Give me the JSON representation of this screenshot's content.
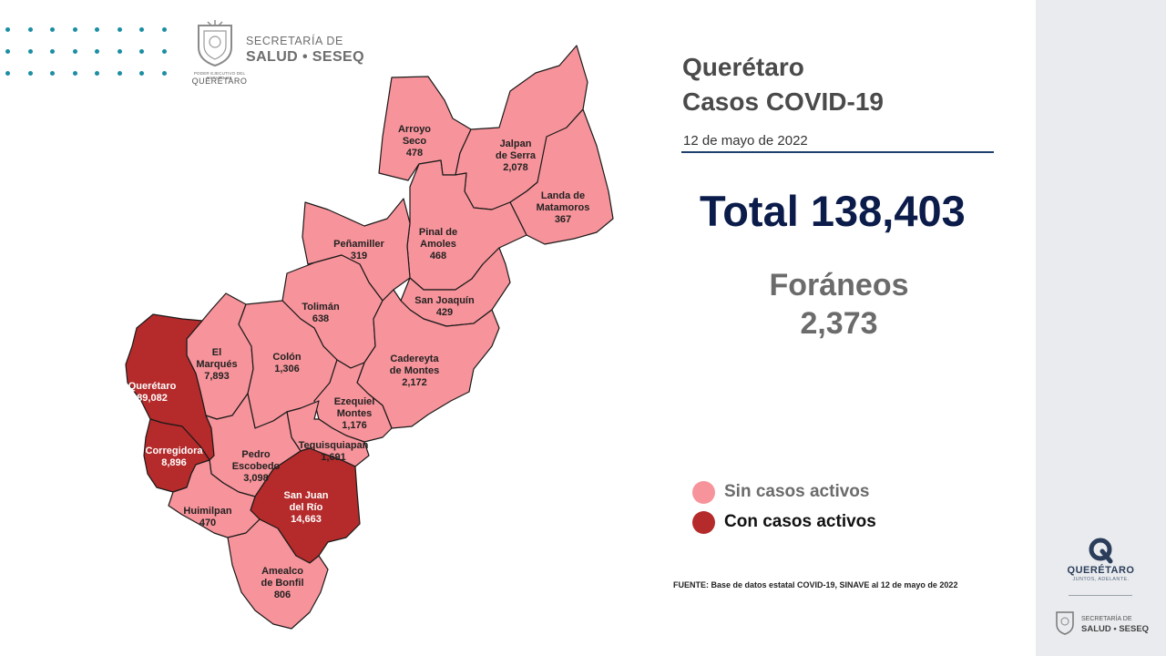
{
  "header": {
    "logo_small_top": "PODER EJECUTIVO DEL ESTADO DE",
    "logo_small_bottom": "QUERÉTARO",
    "logo_line1": "SECRETARÍA DE",
    "logo_line2": "SALUD • SESEQ"
  },
  "title": {
    "line1": "Querétaro",
    "line2": "Casos COVID-19"
  },
  "date": "12 de mayo de 2022",
  "total": "Total 138,403",
  "foraneos": {
    "label": "Foráneos",
    "value": "2,373"
  },
  "colors": {
    "inactive": "#f7939a",
    "active": "#b52a2a",
    "border": "#1a1a1a",
    "title_total": "#0c1c4a",
    "rule": "#1f3f6e"
  },
  "legend": [
    {
      "label": "Sin casos activos",
      "status": "inactive",
      "text_color": "#6b6b6b"
    },
    {
      "label": "Con casos activos",
      "status": "active",
      "text_color": "#111111"
    }
  ],
  "municipalities": [
    {
      "name": "Arroyo Seco",
      "lines": [
        "Arroyo",
        "Seco"
      ],
      "cases": "478",
      "status": "inactive"
    },
    {
      "name": "Jalpan de Serra",
      "lines": [
        "Jalpan",
        "de Serra"
      ],
      "cases": "2,078",
      "status": "inactive"
    },
    {
      "name": "Landa de Matamoros",
      "lines": [
        "Landa de",
        "Matamoros"
      ],
      "cases": "367",
      "status": "inactive"
    },
    {
      "name": "Pinal de Amoles",
      "lines": [
        "Pinal de",
        "Amoles"
      ],
      "cases": "468",
      "status": "inactive"
    },
    {
      "name": "Peñamiller",
      "lines": [
        "Peñamiller"
      ],
      "cases": "319",
      "status": "inactive"
    },
    {
      "name": "San Joaquín",
      "lines": [
        "San Joaquín"
      ],
      "cases": "429",
      "status": "inactive"
    },
    {
      "name": "Tolimán",
      "lines": [
        "Tolimán"
      ],
      "cases": "638",
      "status": "inactive"
    },
    {
      "name": "El Marqués",
      "lines": [
        "El",
        "Marqués"
      ],
      "cases": "7,893",
      "status": "inactive"
    },
    {
      "name": "Colón",
      "lines": [
        "Colón"
      ],
      "cases": "1,306",
      "status": "inactive"
    },
    {
      "name": "Cadereyta de Montes",
      "lines": [
        "Cadereyta",
        "de Montes"
      ],
      "cases": "2,172",
      "status": "inactive"
    },
    {
      "name": "Querétaro",
      "lines": [
        "Querétaro"
      ],
      "cases": "89,082",
      "status": "active"
    },
    {
      "name": "Ezequiel Montes",
      "lines": [
        "Ezequiel",
        "Montes"
      ],
      "cases": "1,176",
      "status": "inactive"
    },
    {
      "name": "Corregidora",
      "lines": [
        "Corregidora"
      ],
      "cases": "8,896",
      "status": "active"
    },
    {
      "name": "Tequisquiapan",
      "lines": [
        "Tequisquiapan"
      ],
      "cases": "1,691",
      "status": "inactive"
    },
    {
      "name": "Pedro Escobedo",
      "lines": [
        "Pedro",
        "Escobedo"
      ],
      "cases": "3,098",
      "status": "inactive"
    },
    {
      "name": "San Juan del Río",
      "lines": [
        "San Juan",
        "del Río"
      ],
      "cases": "14,663",
      "status": "active"
    },
    {
      "name": "Huimilpan",
      "lines": [
        "Huimilpan"
      ],
      "cases": "470",
      "status": "inactive"
    },
    {
      "name": "Amealco de Bonfil",
      "lines": [
        "Amealco",
        "de Bonfil"
      ],
      "cases": "806",
      "status": "inactive"
    }
  ],
  "source": "FUENTE: Base de datos estatal COVID-19, SINAVE al 12 de mayo de 2022",
  "sidebar": {
    "brand": "QUERÉTARO",
    "tagline": "JUNTOS, ADELANTE.",
    "logo_line1": "SECRETARÍA DE",
    "logo_line2": "SALUD • SESEQ"
  }
}
